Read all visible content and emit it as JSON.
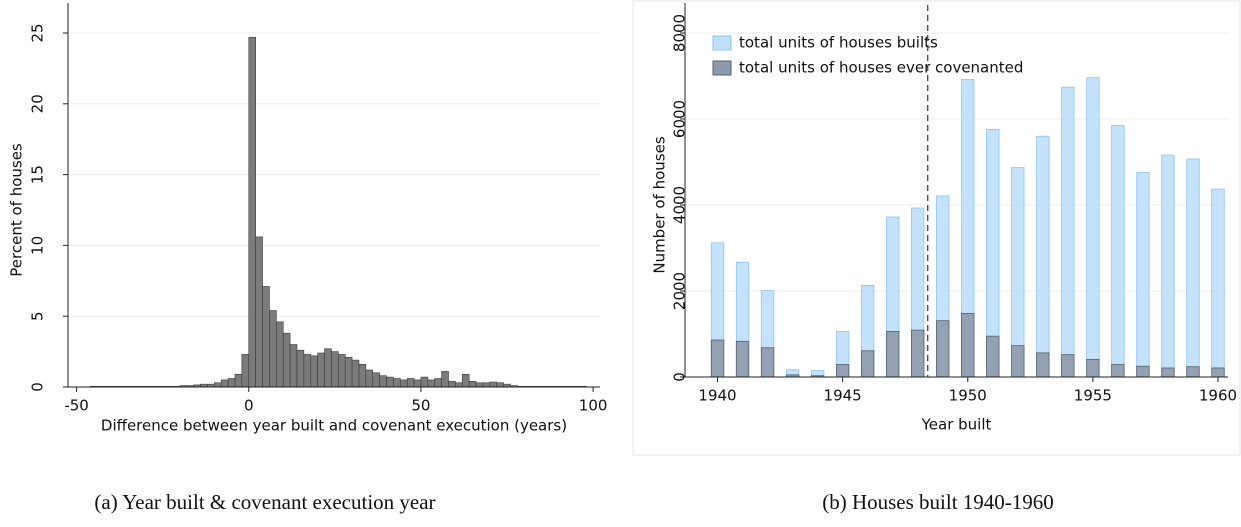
{
  "chart_data": [
    {
      "type": "histogram",
      "caption": "(a) Year built & covenant execution year",
      "x_label": "Difference between year built and covenant execution (years)",
      "y_label": "Percent of houses",
      "bins": [
        -46,
        -44,
        -42,
        -40,
        -38,
        -36,
        -34,
        -32,
        -30,
        -28,
        -26,
        -24,
        -22,
        -20,
        -18,
        -16,
        -14,
        -12,
        -10,
        -8,
        -6,
        -4,
        -2,
        0,
        2,
        4,
        6,
        8,
        10,
        12,
        14,
        16,
        18,
        20,
        22,
        24,
        26,
        28,
        30,
        32,
        34,
        36,
        38,
        40,
        42,
        44,
        46,
        48,
        50,
        52,
        54,
        56,
        58,
        60,
        62,
        64,
        66,
        68,
        70,
        72,
        74,
        76,
        78,
        80,
        82,
        84,
        86,
        88,
        90,
        92,
        94,
        96,
        98
      ],
      "counts": [
        0.05,
        0.05,
        0.05,
        0.05,
        0.05,
        0.05,
        0.05,
        0.05,
        0.05,
        0.05,
        0.05,
        0.05,
        0.05,
        0.1,
        0.1,
        0.15,
        0.2,
        0.2,
        0.3,
        0.5,
        0.6,
        0.9,
        2.3,
        24.7,
        10.6,
        7.1,
        5.4,
        4.6,
        3.8,
        3.0,
        2.6,
        2.3,
        2.2,
        2.4,
        2.7,
        2.5,
        2.3,
        2.1,
        1.9,
        1.6,
        1.2,
        1.0,
        0.8,
        0.7,
        0.6,
        0.5,
        0.6,
        0.5,
        0.7,
        0.5,
        0.6,
        1.1,
        0.4,
        0.3,
        0.9,
        0.4,
        0.3,
        0.3,
        0.35,
        0.3,
        0.2,
        0.1,
        0.05,
        0.05,
        0.05,
        0.05,
        0.05,
        0.05,
        0.05,
        0.05,
        0.05,
        0.05
      ],
      "color": "#7b7b7b",
      "xlim": [
        -52.5,
        102
      ],
      "xticks": [
        -50,
        0,
        50,
        100
      ],
      "ylim": [
        0,
        25
      ],
      "yticks": [
        0,
        5,
        10,
        15,
        20,
        25
      ],
      "grid": true
    },
    {
      "type": "overlap-bar",
      "caption": "(b) Houses built 1940-1960",
      "x_label": "Year built",
      "y_label": "Number of houses",
      "x": [
        1940,
        1941,
        1942,
        1943,
        1944,
        1945,
        1946,
        1947,
        1948,
        1949,
        1950,
        1951,
        1952,
        1953,
        1954,
        1955,
        1956,
        1957,
        1958,
        1959,
        1960
      ],
      "series": [
        {
          "name": "total units of houses builts",
          "color": "#bfdffb",
          "values": [
            3120,
            2670,
            2010,
            170,
            150,
            1060,
            2130,
            3720,
            3930,
            4210,
            6920,
            5760,
            4870,
            5600,
            6740,
            6960,
            5850,
            4760,
            5160,
            5070,
            4370
          ]
        },
        {
          "name": "total units of houses ever covenanted",
          "color": "#8d9aab",
          "values": [
            860,
            830,
            680,
            50,
            30,
            290,
            610,
            1060,
            1090,
            1310,
            1480,
            950,
            730,
            560,
            520,
            410,
            290,
            250,
            210,
            240,
            210
          ]
        }
      ],
      "vline": 1948.4,
      "legend": "top-left",
      "xlim": [
        1938.7,
        1960.4
      ],
      "xticks": [
        1940,
        1945,
        1950,
        1955,
        1960
      ],
      "ylim": [
        0,
        8000
      ],
      "yticks": [
        0,
        2000,
        4000,
        6000,
        8000
      ],
      "grid": true
    }
  ]
}
